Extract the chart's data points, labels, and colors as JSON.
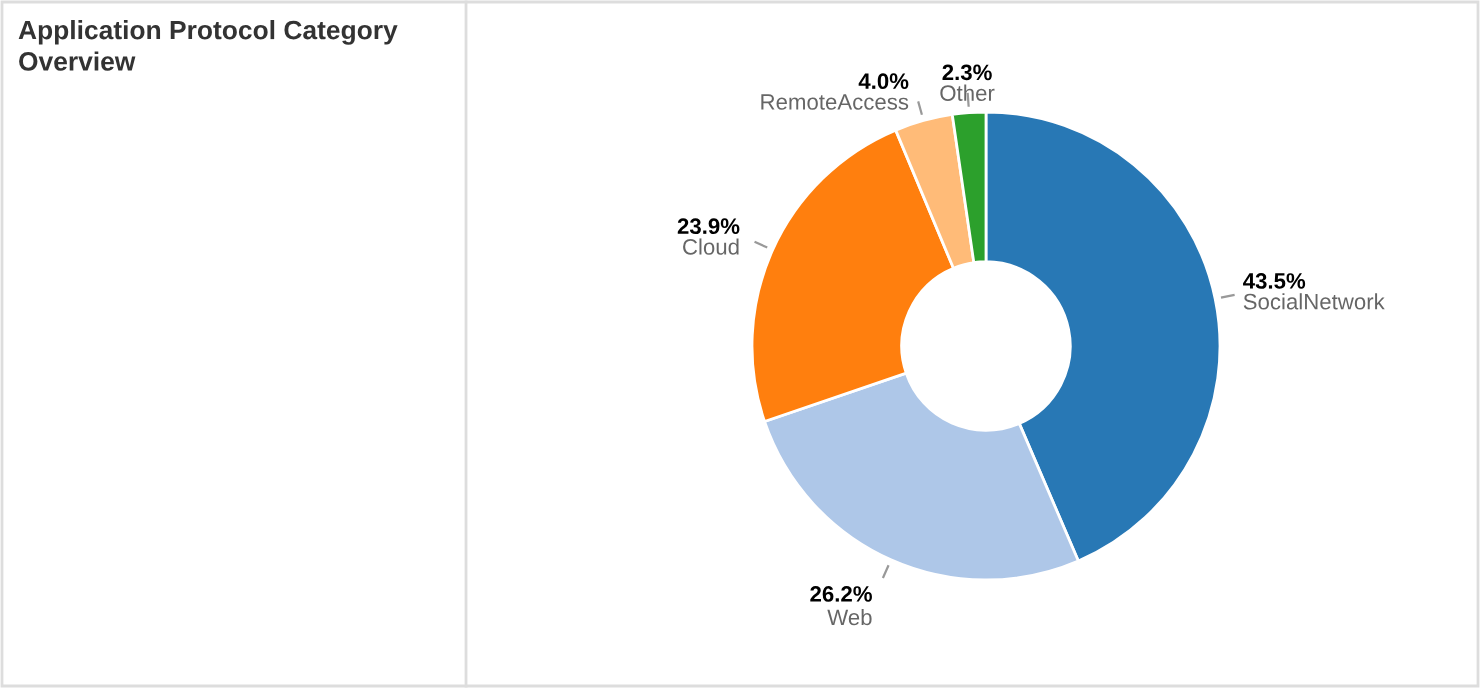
{
  "chart_data": {
    "type": "donut",
    "title": "Application Protocol Category\nOverview",
    "categories": [
      "SocialNetwork",
      "Web",
      "Cloud",
      "RemoteAccess",
      "Other"
    ],
    "values": [
      43.5,
      26.2,
      23.9,
      4.0,
      2.3
    ],
    "colors": [
      "#2878b5",
      "#aec7e8",
      "#ff7f0e",
      "#ffbb78",
      "#2ca02c"
    ],
    "value_labels": [
      "43.5%",
      "26.2%",
      "23.9%",
      "4.0%",
      "2.3%"
    ]
  }
}
